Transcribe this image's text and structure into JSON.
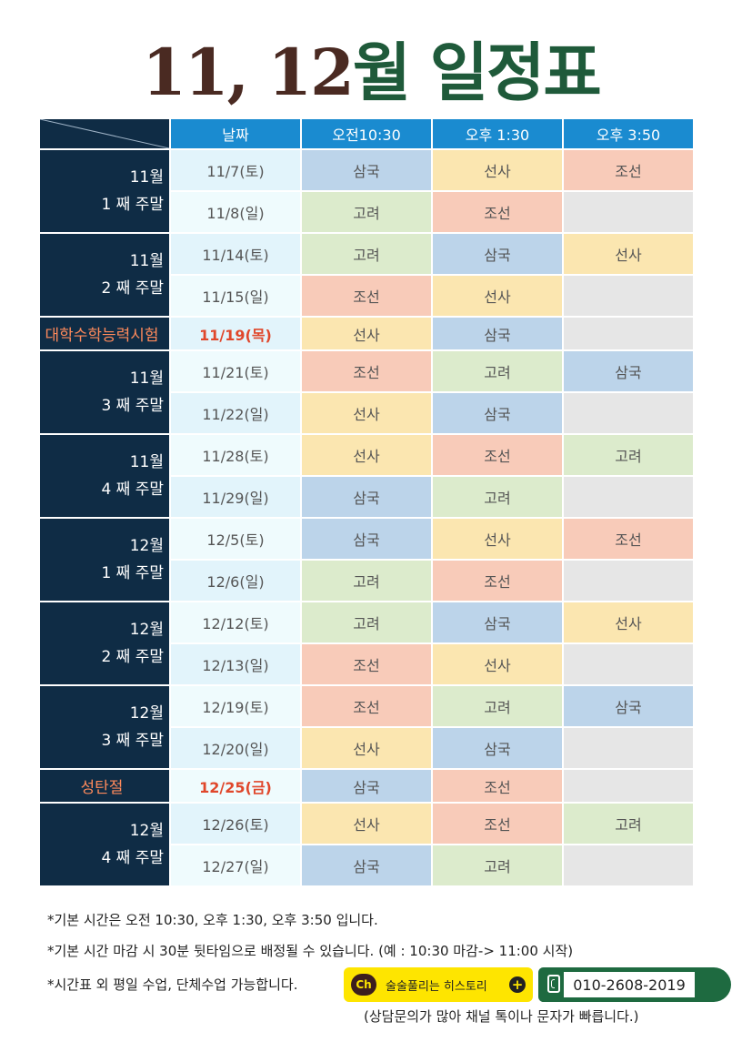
{
  "title": {
    "part1": "11, 12",
    "part2": "월 일정표"
  },
  "header": {
    "date": "날짜",
    "col1": "오전10:30",
    "col2": "오후 1:30",
    "col3": "오후 3:50"
  },
  "groups": [
    {
      "label": [
        "11월",
        "1 째 주말"
      ],
      "rows": [
        {
          "date": "11/7(토)",
          "classes": [
            "삼국",
            "선사",
            "조선"
          ]
        },
        {
          "date": "11/8(일)",
          "classes": [
            "고려",
            "조선",
            ""
          ]
        }
      ]
    },
    {
      "label": [
        "11월",
        "2 째 주말"
      ],
      "rows": [
        {
          "date": "11/14(토)",
          "classes": [
            "고려",
            "삼국",
            "선사"
          ]
        },
        {
          "date": "11/15(일)",
          "classes": [
            "조선",
            "선사",
            ""
          ]
        }
      ]
    },
    {
      "label": [
        "대학수학능력시험"
      ],
      "special": true,
      "rows": [
        {
          "date": "11/19(목)",
          "classes": [
            "선사",
            "삼국",
            ""
          ],
          "red": true
        }
      ]
    },
    {
      "label": [
        "11월",
        "3 째 주말"
      ],
      "rows": [
        {
          "date": "11/21(토)",
          "classes": [
            "조선",
            "고려",
            "삼국"
          ]
        },
        {
          "date": "11/22(일)",
          "classes": [
            "선사",
            "삼국",
            ""
          ]
        }
      ]
    },
    {
      "label": [
        "11월",
        "4 째 주말"
      ],
      "rows": [
        {
          "date": "11/28(토)",
          "classes": [
            "선사",
            "조선",
            "고려"
          ]
        },
        {
          "date": "11/29(일)",
          "classes": [
            "삼국",
            "고려",
            ""
          ]
        }
      ]
    },
    {
      "label": [
        "12월",
        "1 째 주말"
      ],
      "rows": [
        {
          "date": "12/5(토)",
          "classes": [
            "삼국",
            "선사",
            "조선"
          ]
        },
        {
          "date": "12/6(일)",
          "classes": [
            "고려",
            "조선",
            ""
          ]
        }
      ]
    },
    {
      "label": [
        "12월",
        "2 째 주말"
      ],
      "rows": [
        {
          "date": "12/12(토)",
          "classes": [
            "고려",
            "삼국",
            "선사"
          ]
        },
        {
          "date": "12/13(일)",
          "classes": [
            "조선",
            "선사",
            ""
          ]
        }
      ]
    },
    {
      "label": [
        "12월",
        "3 째 주말"
      ],
      "rows": [
        {
          "date": "12/19(토)",
          "classes": [
            "조선",
            "고려",
            "삼국"
          ]
        },
        {
          "date": "12/20(일)",
          "classes": [
            "선사",
            "삼국",
            ""
          ]
        }
      ]
    },
    {
      "label": [
        "성탄절"
      ],
      "special": true,
      "rows": [
        {
          "date": "12/25(금)",
          "classes": [
            "삼국",
            "조선",
            ""
          ],
          "red": true
        }
      ]
    },
    {
      "label": [
        "12월",
        "4 째 주말"
      ],
      "rows": [
        {
          "date": "12/26(토)",
          "classes": [
            "선사",
            "조선",
            "고려"
          ]
        },
        {
          "date": "12/27(일)",
          "classes": [
            "삼국",
            "고려",
            ""
          ]
        }
      ]
    }
  ],
  "subject_colors": {
    "삼국": "#bcd4ea",
    "고려": "#dcebcc",
    "조선": "#f8cbb9",
    "선사": "#fbe6b0",
    "empty": "#e6e6e6"
  },
  "notes": {
    "line1": "*기본 시간은 오전 10:30, 오후 1:30, 오후 3:50 입니다.",
    "line2": "*기본 시간 마감 시 30분 뒷타임으로 배정될 수 있습니다. (예 : 10:30 마감-> 11:00 시작)",
    "line3": "*시간표 외 평일 수업, 단체수업 가능합니다.",
    "line4": "(상담문의가 많아 채널 톡이나 문자가 빠릅니다.)"
  },
  "kakao": {
    "logo": "Ch",
    "label": "술술풀리는 히스토리",
    "icon": "plus-icon"
  },
  "phone": {
    "icon": "phone-icon",
    "number": "010-2608-2019"
  }
}
